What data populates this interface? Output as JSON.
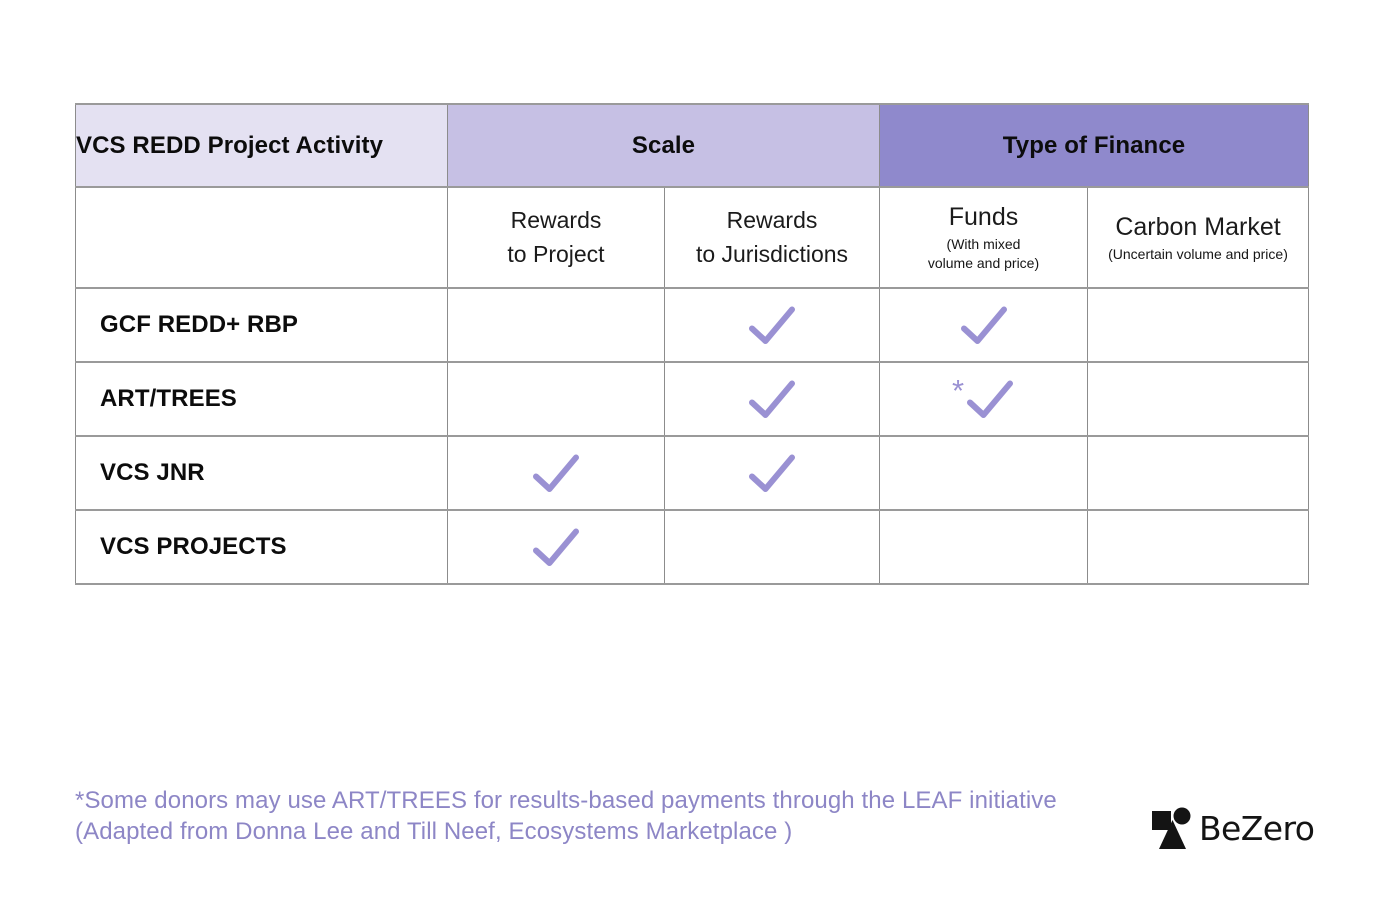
{
  "table": {
    "corner_header": "VCS REDD Project Activity",
    "group_headers": [
      {
        "label": "Scale"
      },
      {
        "label": "Type of Finance"
      }
    ],
    "sub_headers": [
      {
        "main": "Rewards\nto Project",
        "sub": ""
      },
      {
        "main": "Rewards\nto Jurisdictions",
        "sub": ""
      },
      {
        "main": "Funds",
        "sub": "(With mixed\nvolume and price)"
      },
      {
        "main": "Carbon Market",
        "sub": "(Uncertain volume and price)"
      }
    ],
    "rows": [
      {
        "label": "GCF REDD+ RBP",
        "checks": [
          false,
          true,
          true,
          false
        ],
        "asterisk_col": null
      },
      {
        "label": "ART/TREES",
        "checks": [
          false,
          true,
          true,
          false
        ],
        "asterisk_col": 2
      },
      {
        "label": "VCS JNR",
        "checks": [
          true,
          true,
          false,
          false
        ],
        "asterisk_col": null
      },
      {
        "label": "VCS PROJECTS",
        "checks": [
          true,
          false,
          false,
          false
        ],
        "asterisk_col": null
      }
    ],
    "asterisk_symbol": "*"
  },
  "footnote": {
    "line1": "*Some donors may use ART/TREES for results-based payments through the LEAF initiative",
    "line2": "(Adapted from Donna Lee and Till Neef, Ecosystems Marketplace )"
  },
  "logo": {
    "text": "BeZero"
  },
  "colors": {
    "header_light": "#e4e1f2",
    "header_mid": "#c6c0e4",
    "header_dark": "#8f89cc",
    "check": "#9a91d3",
    "footnote_text": "#8d86c6",
    "border": "#8c8c8c",
    "text": "#0c0c0c"
  },
  "chart_data": {
    "type": "table",
    "title": "",
    "columns": [
      "VCS REDD Project Activity",
      "Scale — Rewards to Project",
      "Scale — Rewards to Jurisdictions",
      "Type of Finance — Funds (With mixed volume and price)",
      "Type of Finance — Carbon Market (Uncertain volume and price)"
    ],
    "rows": [
      [
        "GCF REDD+ RBP",
        "",
        "✓",
        "✓",
        ""
      ],
      [
        "ART/TREES",
        "",
        "✓",
        "*✓",
        ""
      ],
      [
        "VCS JNR",
        "✓",
        "✓",
        "",
        ""
      ],
      [
        "VCS PROJECTS",
        "✓",
        "",
        "",
        ""
      ]
    ],
    "footnote": "*Some donors may use ART/TREES for results-based payments through the LEAF initiative (Adapted from Donna Lee and Till Neef, Ecosystems Marketplace )"
  }
}
